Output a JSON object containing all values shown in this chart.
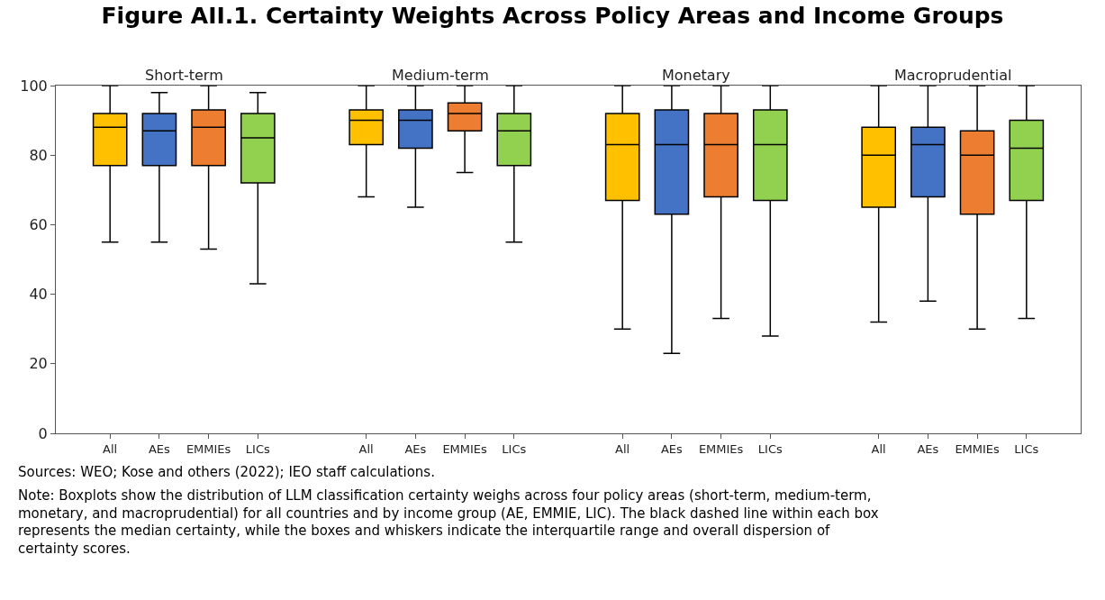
{
  "chart_data": [
    {
      "type": "box",
      "title": "Figure AII.1. Certainty Weights Across Policy Areas and Income Groups",
      "subtitle": "Short-term",
      "categories": [
        "All",
        "AEs",
        "EMMIEs",
        "LICs"
      ],
      "colors": [
        "#ffc000",
        "#4472c4",
        "#ed7d31",
        "#92d050"
      ],
      "boxes": [
        {
          "low": 55,
          "q1": 77,
          "median": 88,
          "q3": 92,
          "high": 100
        },
        {
          "low": 55,
          "q1": 77,
          "median": 87,
          "q3": 92,
          "high": 98
        },
        {
          "low": 53,
          "q1": 77,
          "median": 88,
          "q3": 93,
          "high": 100
        },
        {
          "low": 43,
          "q1": 72,
          "median": 85,
          "q3": 92,
          "high": 98
        }
      ],
      "ylim": [
        0,
        100
      ],
      "yticks": [
        0,
        20,
        40,
        60,
        80,
        100
      ],
      "annotations": [
        "Sources: WEO; Kose and others (2022); IEO staff calculations.",
        "Note: Boxplots show the distribution of LLM classification certainty weighs across four policy areas (short-term, medium-term, monetary, and macroprudential) for all countries and by income group (AE, EMMIE, LIC). The black dashed line within each box represents the median certainty, while the boxes and whiskers indicate the interquartile range and overall dispersion of certainty scores."
      ]
    },
    {
      "type": "box",
      "subtitle": "Medium-term",
      "categories": [
        "All",
        "AEs",
        "EMMIEs",
        "LICs"
      ],
      "colors": [
        "#ffc000",
        "#4472c4",
        "#ed7d31",
        "#92d050"
      ],
      "boxes": [
        {
          "low": 68,
          "q1": 83,
          "median": 90,
          "q3": 93,
          "high": 100
        },
        {
          "low": 65,
          "q1": 82,
          "median": 90,
          "q3": 93,
          "high": 100
        },
        {
          "low": 75,
          "q1": 87,
          "median": 92,
          "q3": 95,
          "high": 100
        },
        {
          "low": 55,
          "q1": 77,
          "median": 87,
          "q3": 92,
          "high": 100
        }
      ],
      "ylim": [
        0,
        100
      ],
      "yticks": [
        0,
        20,
        40,
        60,
        80,
        100
      ],
      "tick_labels": "x"
    },
    {
      "type": "box",
      "subtitle": "Monetary",
      "categories": [
        "All",
        "AEs",
        "EMMIEs",
        "LICs"
      ],
      "colors": [
        "#ffc000",
        "#4472c4",
        "#ed7d31",
        "#92d050"
      ],
      "boxes": [
        {
          "low": 30,
          "q1": 67,
          "median": 83,
          "q3": 92,
          "high": 100
        },
        {
          "low": 23,
          "q1": 63,
          "median": 83,
          "q3": 93,
          "high": 100
        },
        {
          "low": 33,
          "q1": 68,
          "median": 83,
          "q3": 92,
          "high": 100
        },
        {
          "low": 28,
          "q1": 67,
          "median": 83,
          "q3": 93,
          "high": 100
        }
      ],
      "ylim": [
        0,
        100
      ],
      "yticks": [
        0,
        20,
        40,
        60,
        80,
        100
      ],
      "tick_labels": "x"
    },
    {
      "type": "box",
      "subtitle": "Macroprudential",
      "categories": [
        "All",
        "AEs",
        "EMMIEs",
        "LICs"
      ],
      "colors": [
        "#ffc000",
        "#4472c4",
        "#ed7d31",
        "#92d050"
      ],
      "boxes": [
        {
          "low": 32,
          "q1": 65,
          "median": 80,
          "q3": 88,
          "high": 100
        },
        {
          "low": 38,
          "q1": 68,
          "median": 83,
          "q3": 88,
          "high": 100
        },
        {
          "low": 30,
          "q1": 63,
          "median": 80,
          "q3": 87,
          "high": 100
        },
        {
          "low": 33,
          "q1": 67,
          "median": 82,
          "q3": 90,
          "high": 100
        }
      ],
      "ylim": [
        0,
        100
      ],
      "yticks": [
        0,
        20,
        40,
        60,
        80,
        100
      ],
      "tick_labels": "x"
    }
  ]
}
